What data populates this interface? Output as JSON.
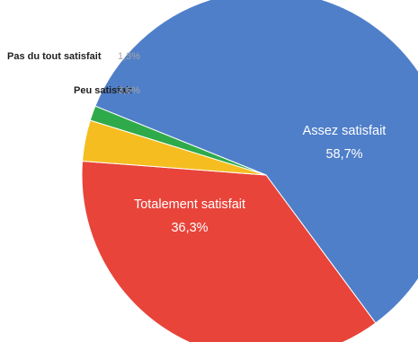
{
  "chart_data": {
    "type": "pie",
    "title": "",
    "slices": [
      {
        "label": "Assez satisfait",
        "value": 58.7,
        "display": "58,7%",
        "color": "#4f7fc9",
        "label_position": "inside"
      },
      {
        "label": "Totalement satisfait",
        "value": 36.3,
        "display": "36,3%",
        "color": "#e8443a",
        "label_position": "inside"
      },
      {
        "label": "Peu satisfait",
        "value": 3.6,
        "display": "3,6%",
        "color": "#f5bd1f",
        "label_position": "outside"
      },
      {
        "label": "Pas du tout satisfait",
        "value": 1.3,
        "display": "1,3%",
        "color": "#2faa4b",
        "label_position": "outside"
      }
    ],
    "legend": "none"
  }
}
